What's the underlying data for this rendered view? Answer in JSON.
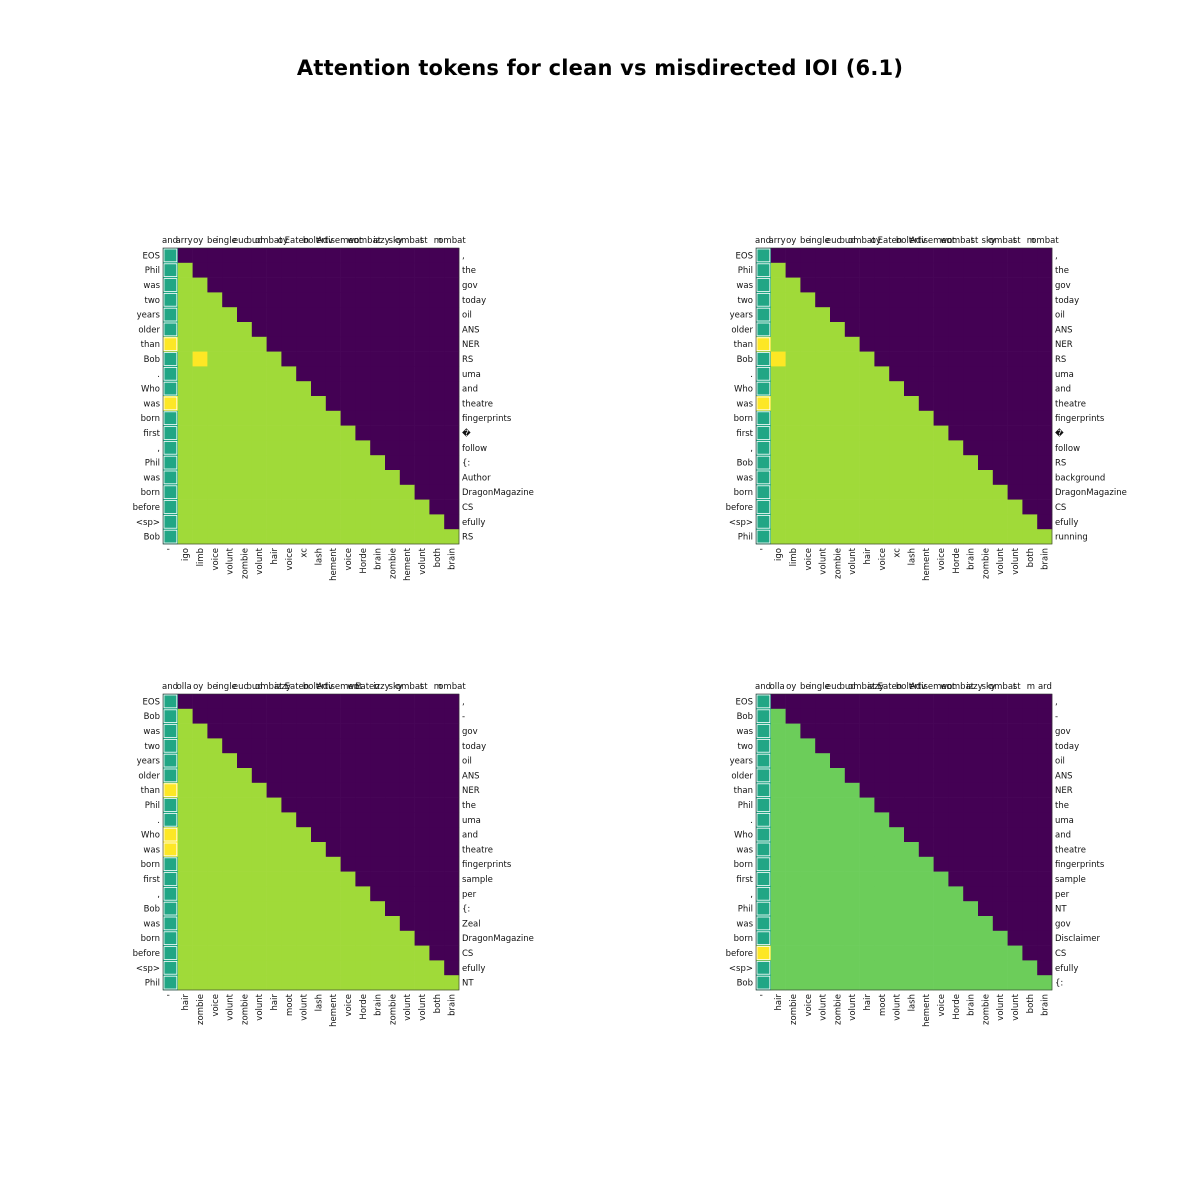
{
  "title": "Attention tokens for clean vs misdirected IOI (6.1)",
  "chart_data": [
    {
      "type": "heatmap",
      "colors": {
        "base": "#a0da39",
        "diag": "#21a685",
        "hot": "#fde725",
        "masked": "#440154"
      },
      "top_labels": [
        "and",
        "arry",
        "oy",
        "be",
        "ingle",
        "euc",
        "bud",
        "ombat",
        "oy",
        "Eaten",
        "bolt",
        "Adv",
        "ertisement",
        "wo",
        "ombat",
        "izzy",
        "sky",
        "ombat",
        "st",
        "m",
        "ombat"
      ],
      "rows": [
        "EOS",
        "Phil",
        "was",
        "two",
        "years",
        "older",
        "than",
        "Bob",
        ".",
        "Who",
        "was",
        "born",
        "first",
        ",",
        "Phil",
        "was",
        "born",
        "before",
        "<sp>",
        "Bob"
      ],
      "right_labels": [
        ",",
        " the",
        "gov",
        "today",
        "oil",
        "ANS",
        "NER",
        " RS",
        "uma",
        "and",
        " theatre",
        " fingerprints",
        "�",
        " follow",
        " {:",
        " Author",
        "DragonMagazine",
        " CS",
        "efully",
        " RS"
      ],
      "bottom_labels": [
        "'",
        "igo",
        "limb",
        "voice",
        "volunt",
        "zombie",
        "volunt",
        "hair",
        "voice",
        "xc",
        "lash",
        "hement",
        "voice",
        "Horde",
        "brain",
        "zombie",
        "hement",
        "volunt",
        "both",
        "brain"
      ],
      "hot_cells": [
        [
          6,
          0
        ],
        [
          10,
          0
        ],
        [
          7,
          2
        ]
      ]
    },
    {
      "type": "heatmap",
      "colors": {
        "base": "#a0da39",
        "diag": "#21a685",
        "hot": "#fde725",
        "masked": "#440154"
      },
      "top_labels": [
        "and",
        "arry",
        "oy",
        "be",
        "ingle",
        "euc",
        "bud",
        "ombat",
        "oy",
        "Eaten",
        "bolt",
        "Adv",
        "ertisement",
        "wo",
        "ombat",
        "st",
        "sky",
        "ombat",
        "st",
        "m",
        "ombat"
      ],
      "rows": [
        "EOS",
        "Phil",
        "was",
        "two",
        "years",
        "older",
        "than",
        "Bob",
        ".",
        "Who",
        "was",
        "born",
        "first",
        ",",
        "Bob",
        "was",
        "born",
        "before",
        "<sp>",
        "Phil"
      ],
      "right_labels": [
        ",",
        " the",
        "gov",
        "today",
        "oil",
        "ANS",
        "NER",
        " RS",
        "uma",
        "and",
        " theatre",
        " fingerprints",
        "�",
        " follow",
        " RS",
        " background",
        "DragonMagazine",
        " CS",
        "efully",
        " running"
      ],
      "bottom_labels": [
        "'",
        "igo",
        "limb",
        "voice",
        "volunt",
        "zombie",
        "volunt",
        "hair",
        "voice",
        "xc",
        "lash",
        "hement",
        "voice",
        "Horde",
        "brain",
        "zombie",
        "volunt",
        "volunt",
        "both",
        "brain"
      ],
      "hot_cells": [
        [
          6,
          0
        ],
        [
          10,
          0
        ],
        [
          7,
          1
        ]
      ]
    },
    {
      "type": "heatmap",
      "colors": {
        "base": "#a0da39",
        "diag": "#21a685",
        "hot": "#fde725",
        "masked": "#440154"
      },
      "top_labels": [
        "and",
        "olla",
        "oy",
        "be",
        "ingle",
        "euc",
        "bud",
        "ombat",
        "izzy",
        "Eaten",
        "bolt",
        "Adv",
        "ertisement",
        "wo",
        "Eaten",
        "izzy",
        "sky",
        "ombat",
        "st",
        "m",
        "ombat"
      ],
      "rows": [
        "EOS",
        "Bob",
        "was",
        "two",
        "years",
        "older",
        "than",
        "Phil",
        ".",
        "Who",
        "was",
        "born",
        "first",
        ",",
        "Bob",
        "was",
        "born",
        "before",
        "<sp>",
        "Phil"
      ],
      "right_labels": [
        ",",
        "-",
        "gov",
        "today",
        "oil",
        "ANS",
        "NER",
        " the",
        "uma",
        "and",
        " theatre",
        " fingerprints",
        " sample",
        " per",
        " {:",
        " Zeal",
        "DragonMagazine",
        " CS",
        "efully",
        " NT"
      ],
      "bottom_labels": [
        "'",
        "hair",
        "zombie",
        "voice",
        "volunt",
        "zombie",
        "volunt",
        "hair",
        "moot",
        "volunt",
        "lash",
        "hement",
        "voice",
        "Horde",
        "brain",
        "zombie",
        "volunt",
        "volunt",
        "both",
        "brain"
      ],
      "hot_cells": [
        [
          6,
          0
        ],
        [
          9,
          0
        ],
        [
          10,
          0
        ]
      ]
    },
    {
      "type": "heatmap",
      "colors": {
        "base": "#6ccd5a",
        "diag": "#21a685",
        "hot": "#fde725",
        "masked": "#440154"
      },
      "top_labels": [
        "and",
        "olla",
        "oy",
        "be",
        "ingle",
        "euc",
        "bud",
        "ombat",
        "izzy",
        "Eaten",
        "bolt",
        "Adv",
        "ertisement",
        "wo",
        "ombat",
        "izzy",
        "sky",
        "ombat",
        "st",
        "m",
        "ard"
      ],
      "rows": [
        "EOS",
        "Bob",
        "was",
        "two",
        "years",
        "older",
        "than",
        "Phil",
        ".",
        "Who",
        "was",
        "born",
        "first",
        ",",
        "Phil",
        "was",
        "born",
        "before",
        "<sp>",
        "Bob"
      ],
      "right_labels": [
        ",",
        "-",
        "gov",
        "today",
        "oil",
        "ANS",
        "NER",
        " the",
        "uma",
        "and",
        " theatre",
        " fingerprints",
        " sample",
        " per",
        " NT",
        "gov",
        "Disclaimer",
        " CS",
        "efully",
        " {:"
      ],
      "bottom_labels": [
        "'",
        "hair",
        "zombie",
        "voice",
        "volunt",
        "zombie",
        "volunt",
        "hair",
        "moot",
        "volunt",
        "lash",
        "hement",
        "voice",
        "Horde",
        "brain",
        "zombie",
        "volunt",
        "volunt",
        "both",
        "brain"
      ],
      "hot_cells": [
        [
          17,
          0
        ]
      ]
    }
  ]
}
